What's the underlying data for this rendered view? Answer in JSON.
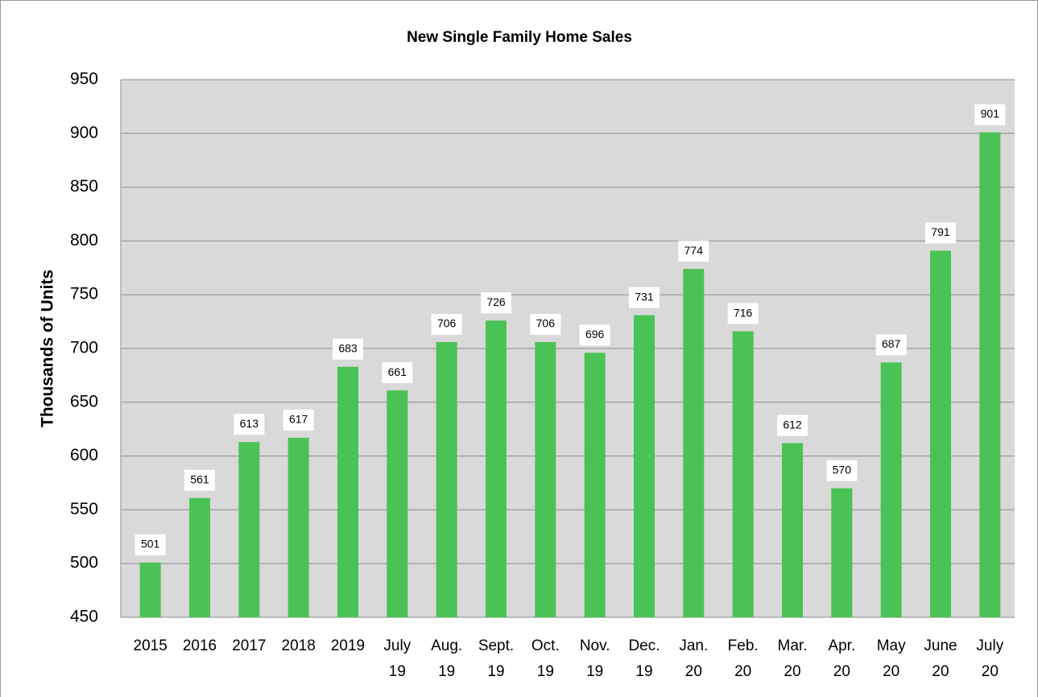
{
  "chart_data": {
    "type": "bar",
    "title": "New Single Family Home Sales",
    "y_label": "Thousands of Units",
    "categories": [
      [
        "2015"
      ],
      [
        "2016"
      ],
      [
        "2017"
      ],
      [
        "2018"
      ],
      [
        "2019"
      ],
      [
        "July",
        "19"
      ],
      [
        "Aug.",
        "19"
      ],
      [
        "Sept.",
        "19"
      ],
      [
        "Oct.",
        "19"
      ],
      [
        "Nov.",
        "19"
      ],
      [
        "Dec.",
        "19"
      ],
      [
        "Jan.",
        "20"
      ],
      [
        "Feb.",
        "20"
      ],
      [
        "Mar.",
        "20"
      ],
      [
        "Apr.",
        "20"
      ],
      [
        "May",
        "20"
      ],
      [
        "June",
        "20"
      ],
      [
        "July",
        "20"
      ]
    ],
    "values": [
      501,
      561,
      613,
      617,
      683,
      661,
      706,
      726,
      706,
      696,
      731,
      774,
      716,
      612,
      570,
      687,
      791,
      901
    ],
    "color": "#4bc255",
    "ylim": [
      450,
      950
    ],
    "yticks": [
      450,
      500,
      550,
      600,
      650,
      700,
      750,
      800,
      850,
      900,
      950
    ],
    "grid": true
  }
}
